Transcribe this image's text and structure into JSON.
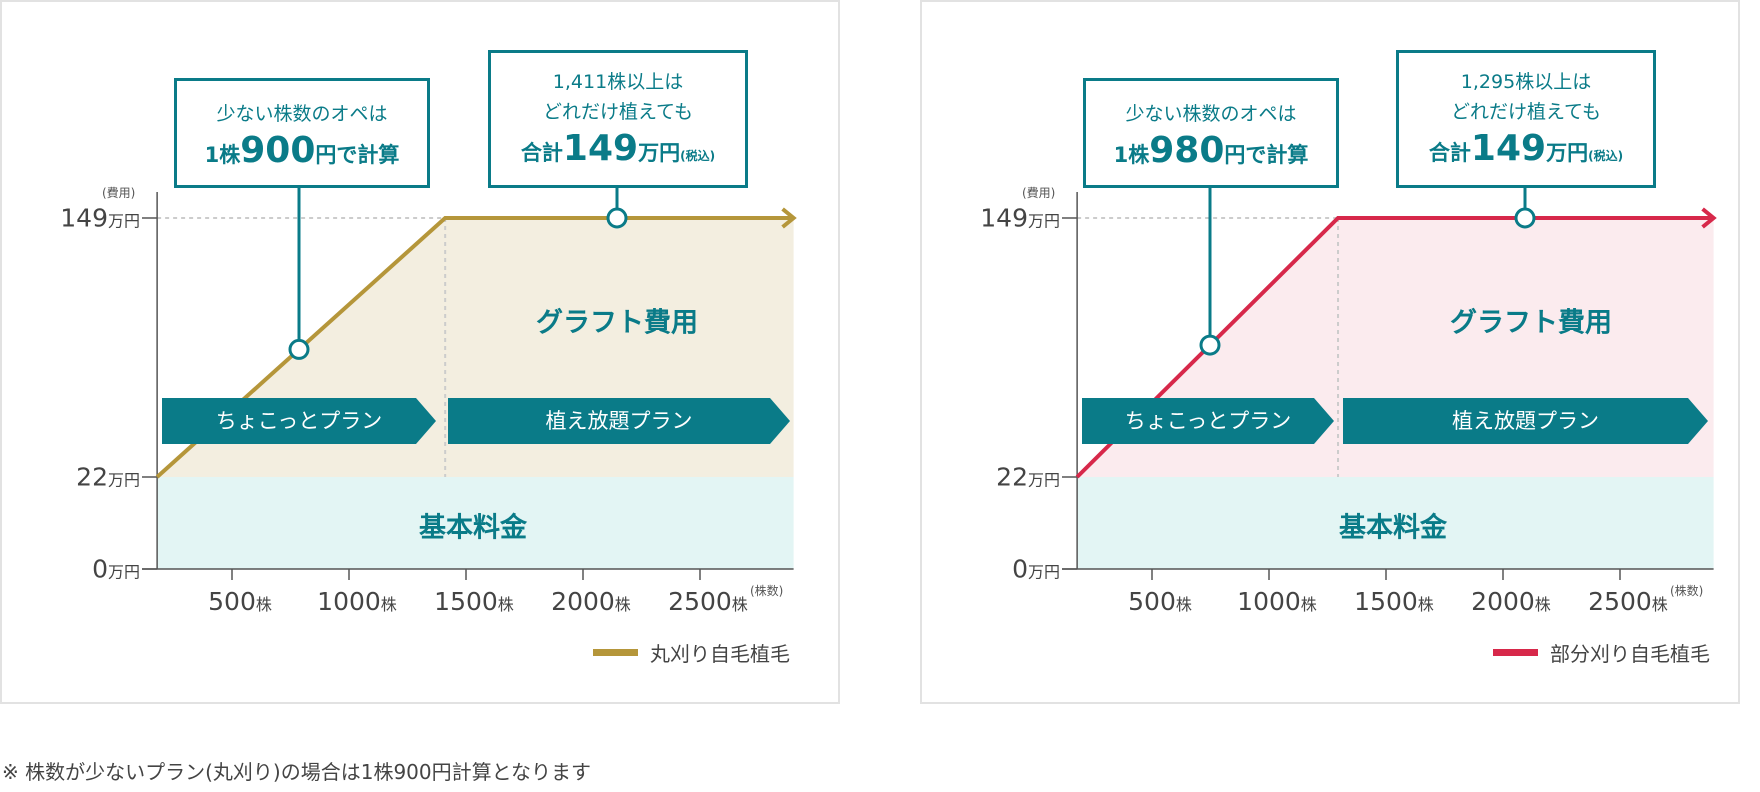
{
  "chart_data": [
    {
      "type": "line",
      "legend": "丸刈り自毛植毛",
      "legend_position": "bottom-right",
      "color": "#b5963a",
      "fill_color": "#f3eee0",
      "base_fill_color": "#e3f5f4",
      "accent_color": "#0a7b88",
      "y_unit": "(費用)",
      "x_unit": "(株数)",
      "yticks": [
        {
          "value": 149,
          "label": "149",
          "unit": "万円"
        },
        {
          "value": 22,
          "label": "22",
          "unit": "万円"
        },
        {
          "value": 0,
          "label": "0",
          "unit": "万円"
        }
      ],
      "xticks": [
        {
          "value": 500,
          "label": "500",
          "unit": "株"
        },
        {
          "value": 1000,
          "label": "1000",
          "unit": "株"
        },
        {
          "value": 1500,
          "label": "1500",
          "unit": "株"
        },
        {
          "value": 2000,
          "label": "2000",
          "unit": "株"
        },
        {
          "value": 2500,
          "label": "2500",
          "unit": "株"
        }
      ],
      "xlim": [
        180,
        2900
      ],
      "ylim": [
        0,
        149
      ],
      "series": [
        {
          "name": "丸刈り自毛植毛",
          "points": [
            [
              180,
              22
            ],
            [
              1411,
              149
            ],
            [
              2900,
              149
            ]
          ]
        }
      ],
      "base_fee": 22,
      "cap": 149,
      "cap_shares": 1411,
      "areas": {
        "graft": "グラフト費用",
        "base": "基本料金"
      },
      "ribbons": [
        "ちょこっとプラン",
        "植え放題プラン"
      ],
      "callout_low": {
        "line1": "少ない株数のオペは",
        "pre": "1株",
        "num": "900",
        "post": "円で計算"
      },
      "callout_high": {
        "line1": "1,411株以上は",
        "line2": "どれだけ植えても",
        "pre": "合計",
        "num": "149",
        "post": "万円",
        "note": "(税込)"
      }
    },
    {
      "type": "line",
      "legend": "部分刈り自毛植毛",
      "legend_position": "bottom-right",
      "color": "#d7284a",
      "fill_color": "#fbebee",
      "base_fill_color": "#e3f5f4",
      "accent_color": "#0a7b88",
      "y_unit": "(費用)",
      "x_unit": "(株数)",
      "yticks": [
        {
          "value": 149,
          "label": "149",
          "unit": "万円"
        },
        {
          "value": 22,
          "label": "22",
          "unit": "万円"
        },
        {
          "value": 0,
          "label": "0",
          "unit": "万円"
        }
      ],
      "xticks": [
        {
          "value": 500,
          "label": "500",
          "unit": "株"
        },
        {
          "value": 1000,
          "label": "1000",
          "unit": "株"
        },
        {
          "value": 1500,
          "label": "1500",
          "unit": "株"
        },
        {
          "value": 2000,
          "label": "2000",
          "unit": "株"
        },
        {
          "value": 2500,
          "label": "2500",
          "unit": "株"
        }
      ],
      "xlim": [
        180,
        2900
      ],
      "ylim": [
        0,
        149
      ],
      "series": [
        {
          "name": "部分刈り自毛植毛",
          "points": [
            [
              180,
              22
            ],
            [
              1295,
              149
            ],
            [
              2900,
              149
            ]
          ]
        }
      ],
      "base_fee": 22,
      "cap": 149,
      "cap_shares": 1295,
      "areas": {
        "graft": "グラフト費用",
        "base": "基本料金"
      },
      "ribbons": [
        "ちょこっとプラン",
        "植え放題プラン"
      ],
      "callout_low": {
        "line1": "少ない株数のオペは",
        "pre": "1株",
        "num": "980",
        "post": "円で計算"
      },
      "callout_high": {
        "line1": "1,295株以上は",
        "line2": "どれだけ植えても",
        "pre": "合計",
        "num": "149",
        "post": "万円",
        "note": "(税込)"
      }
    }
  ],
  "footnote": "※ 株数が少ないプラン(丸刈り)の場合は1株900円計算となります"
}
